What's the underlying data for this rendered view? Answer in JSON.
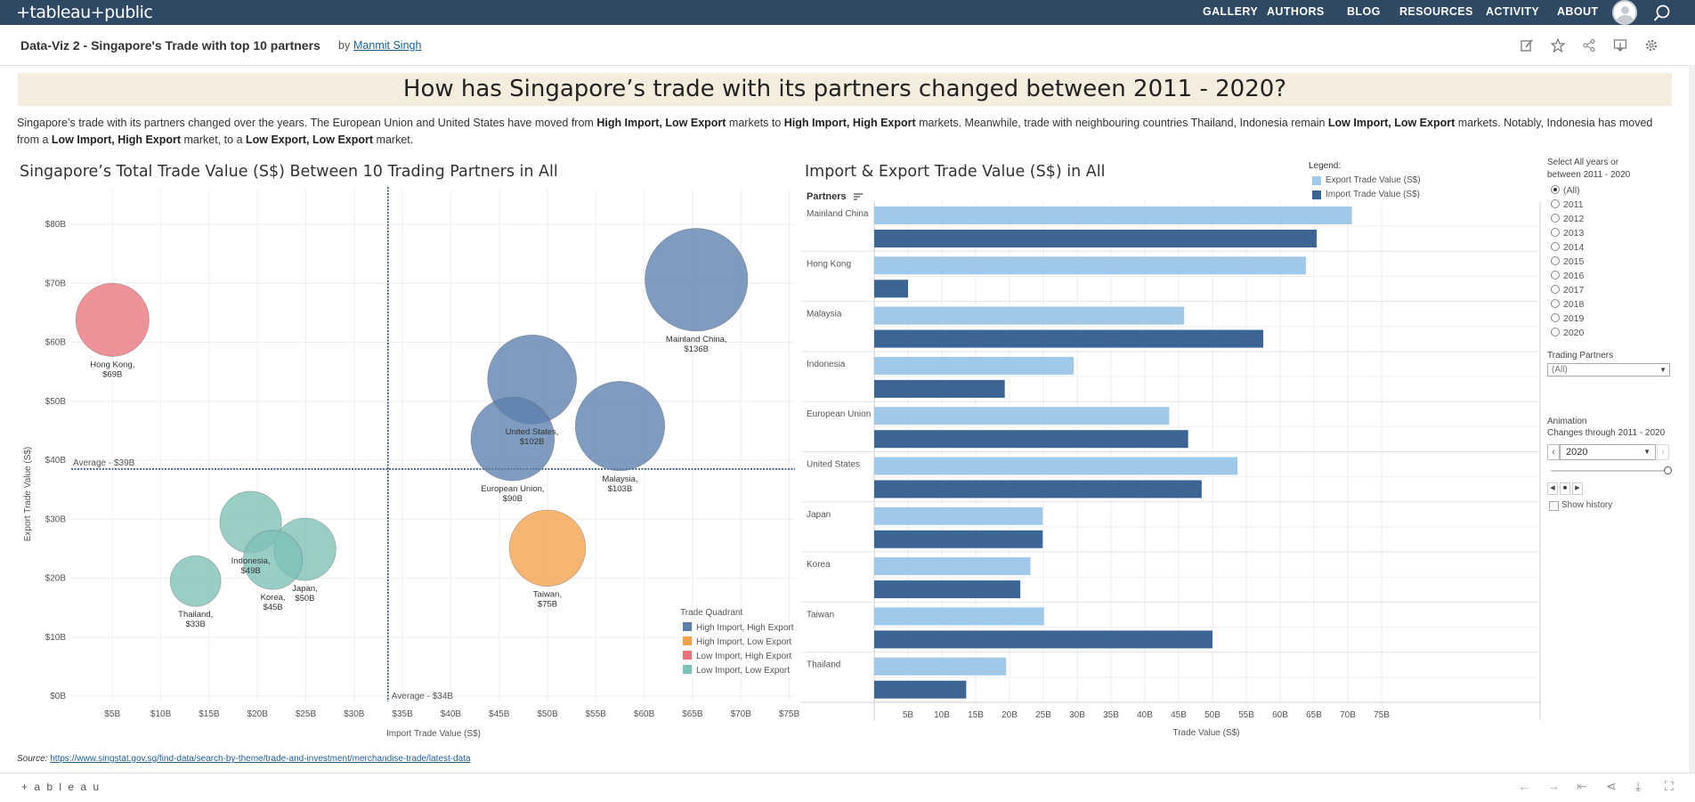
{
  "nav": {
    "logo": "+tableau+public",
    "links": [
      "GALLERY",
      "AUTHORS",
      "BLOG",
      "RESOURCES",
      "ACTIVITY",
      "ABOUT"
    ],
    "search_icon": "search-icon",
    "avatar_icon": "user-avatar-icon"
  },
  "viz": {
    "title": "Data-Viz 2 - Singapore's Trade with top 10 partners",
    "by": "by",
    "author": "Manmit Singh",
    "toolbar_icons": [
      "edit-icon",
      "star-icon",
      "share-icon",
      "download-icon",
      "settings-icon"
    ]
  },
  "headline": "How has Singapore’s trade with its partners changed between 2011 - 2020?",
  "intro": {
    "p1": "Singapore’s trade with its partners changed over the years. The European Union and United States have moved from ",
    "b1": "High Import, Low Export",
    "p2": " markets to ",
    "b2": "High Import, High Export",
    "p3": " markets. Meanwhile, trade with neighbouring countries Thailand, Indonesia remain ",
    "b3": "Low Import, Low Export",
    "p4": " markets. Notably, Indonesia has moved from a ",
    "b4": "Low Import, High Export",
    "p5": " market, to a ",
    "b5": "Low Export, Low Export",
    "p6": " market."
  },
  "scatter": {
    "title": "Singapore’s Total Trade Value (S$) Between 10 Trading Partners in All",
    "xlabel": "Import Trade Value (S$)",
    "ylabel": "Export Trade Value (S$)",
    "avg_x_label": "Average - $34B",
    "avg_y_label": "Average - $39B",
    "legend_title": "Trade Quadrant"
  },
  "bar": {
    "title": "Import & Export Trade Value (S$) in All",
    "partners_header": "Partners",
    "xlabel": "Trade Value (S$)",
    "legend_title": "Legend:",
    "export_label": "Export Trade Value (S$)",
    "import_label": "Import Trade Value (S$)"
  },
  "filters": {
    "years_title_1": "Select All years or",
    "years_title_2": "between 2011 - 2020",
    "years": [
      "(All)",
      "2011",
      "2012",
      "2013",
      "2014",
      "2015",
      "2016",
      "2017",
      "2018",
      "2019",
      "2020"
    ],
    "selected_year": "(All)",
    "partners_title": "Trading Partners",
    "partners_value": "(All)",
    "animation_title": "Animation",
    "animation_subtitle": "Changes through 2011 - 2020",
    "animation_value": "2020",
    "show_history": "Show history"
  },
  "source": {
    "label": "Source:",
    "url": "https://www.singstat.gov.sg/find-data/search-by-theme/trade-and-investment/merchandise-trade/latest-data"
  },
  "footer": {
    "brand": "+ a b l e a u"
  },
  "colors": {
    "high_high": "#5b7fad",
    "high_low": "#f3a04a",
    "low_high": "#e8737b",
    "low_low": "#7cc0b7",
    "export_bar": "#a0c8e8",
    "import_bar": "#3c6594",
    "nav_bg": "#2f4863"
  },
  "chart_data": [
    {
      "type": "scatter",
      "title": "Singapore’s Total Trade Value (S$) Between 10 Trading Partners in All",
      "xlabel": "Import Trade Value (S$)",
      "ylabel": "Export Trade Value (S$)",
      "xlim": [
        0,
        75
      ],
      "ylim": [
        0,
        85
      ],
      "x_ticks": [
        "$5B",
        "$10B",
        "$15B",
        "$20B",
        "$25B",
        "$30B",
        "$35B",
        "$40B",
        "$45B",
        "$50B",
        "$55B",
        "$60B",
        "$65B",
        "$70B",
        "$75B"
      ],
      "y_ticks": [
        "$0B",
        "$10B",
        "$20B",
        "$30B",
        "$40B",
        "$50B",
        "$60B",
        "$70B",
        "$80B"
      ],
      "avg_x": 33.5,
      "avg_y": 38.5,
      "legend": [
        {
          "name": "High Import, High Export",
          "color": "#5b7fad"
        },
        {
          "name": "High Import, Low Export",
          "color": "#f3a04a"
        },
        {
          "name": "Low Import, High Export",
          "color": "#e8737b"
        },
        {
          "name": "Low Import, Low Export",
          "color": "#7cc0b7"
        }
      ],
      "points": [
        {
          "name": "Mainland China",
          "value": "$136B",
          "x": 65.4,
          "y": 70.6,
          "total": 136,
          "quadrant": "High Import, High Export"
        },
        {
          "name": "Hong Kong",
          "value": "$69B",
          "x": 5.0,
          "y": 63.8,
          "total": 69,
          "quadrant": "Low Import, High Export"
        },
        {
          "name": "United States",
          "value": "$102B",
          "x": 48.4,
          "y": 53.7,
          "total": 102,
          "quadrant": "High Import, High Export"
        },
        {
          "name": "Malaysia",
          "value": "$103B",
          "x": 57.5,
          "y": 45.8,
          "total": 103,
          "quadrant": "High Import, High Export"
        },
        {
          "name": "European Union",
          "value": "$90B",
          "x": 46.4,
          "y": 43.6,
          "total": 90,
          "quadrant": "High Import, High Export"
        },
        {
          "name": "Taiwan",
          "value": "$75B",
          "x": 50.0,
          "y": 25.1,
          "total": 75,
          "quadrant": "High Import, Low Export"
        },
        {
          "name": "Indonesia",
          "value": "$49B",
          "x": 19.3,
          "y": 29.5,
          "total": 49,
          "quadrant": "Low Import, Low Export"
        },
        {
          "name": "Japan",
          "value": "$50B",
          "x": 24.9,
          "y": 24.9,
          "total": 50,
          "quadrant": "Low Import, Low Export"
        },
        {
          "name": "Korea",
          "value": "$45B",
          "x": 21.6,
          "y": 23.1,
          "total": 45,
          "quadrant": "Low Import, Low Export"
        },
        {
          "name": "Thailand",
          "value": "$33B",
          "x": 13.6,
          "y": 19.5,
          "total": 33,
          "quadrant": "Low Import, Low Export"
        }
      ]
    },
    {
      "type": "bar",
      "title": "Import & Export Trade Value (S$) in All",
      "xlabel": "Trade Value (S$)",
      "x_ticks": [
        "5B",
        "10B",
        "15B",
        "20B",
        "25B",
        "30B",
        "35B",
        "40B",
        "45B",
        "50B",
        "55B",
        "60B",
        "65B",
        "70B",
        "75B"
      ],
      "xlim": [
        0,
        78
      ],
      "categories": [
        "Mainland China",
        "Hong Kong",
        "Malaysia",
        "Indonesia",
        "European Union",
        "United States",
        "Japan",
        "Korea",
        "Taiwan",
        "Thailand"
      ],
      "series": [
        {
          "name": "Export Trade Value (S$)",
          "values": [
            70.6,
            63.8,
            45.8,
            29.5,
            43.6,
            53.7,
            24.9,
            23.1,
            25.1,
            19.5
          ]
        },
        {
          "name": "Import Trade Value (S$)",
          "values": [
            65.4,
            5.0,
            57.5,
            19.3,
            46.4,
            48.4,
            24.9,
            21.6,
            50.0,
            13.6
          ]
        }
      ]
    }
  ]
}
